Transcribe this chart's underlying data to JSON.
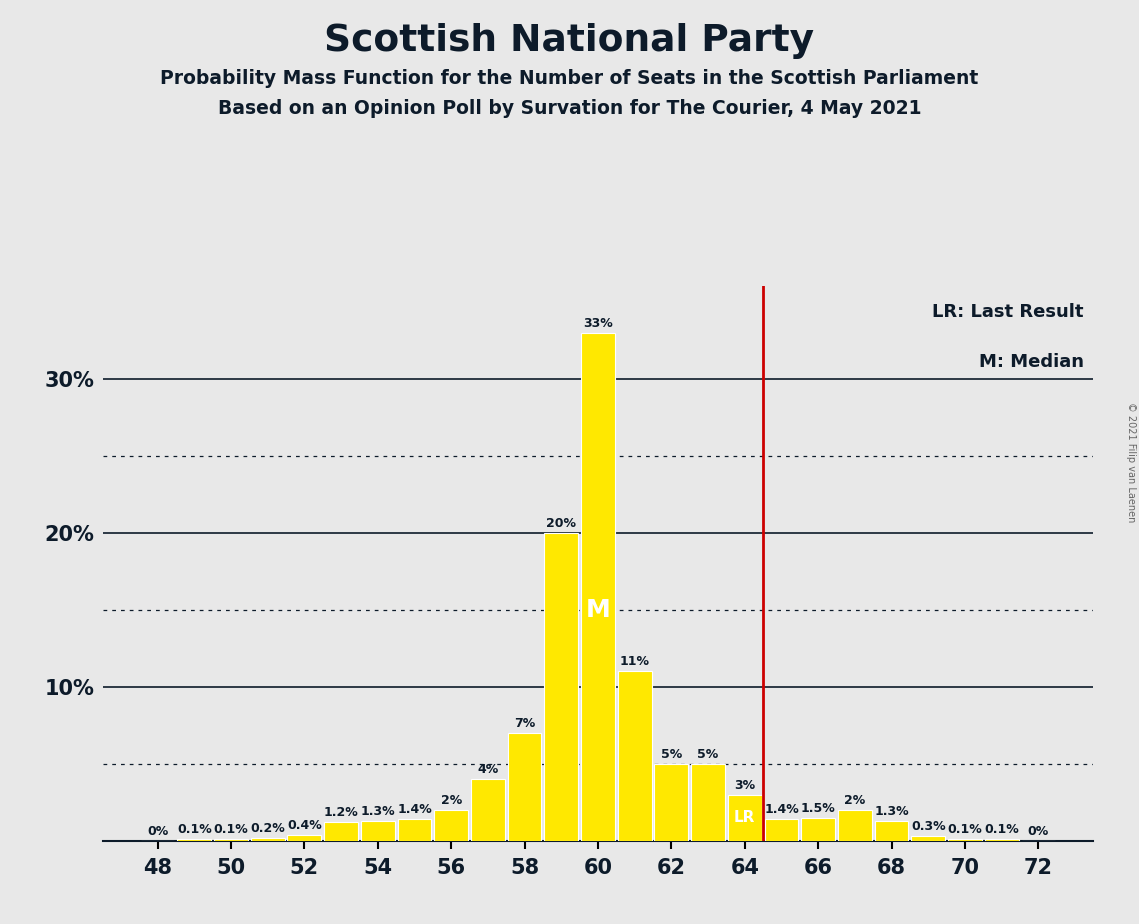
{
  "title": "Scottish National Party",
  "subtitle1": "Probability Mass Function for the Number of Seats in the Scottish Parliament",
  "subtitle2": "Based on an Opinion Poll by Survation for The Courier, 4 May 2021",
  "copyright": "© 2021 Filip van Laenen",
  "seats": [
    48,
    49,
    50,
    51,
    52,
    53,
    54,
    55,
    56,
    57,
    58,
    59,
    60,
    61,
    62,
    63,
    64,
    65,
    66,
    67,
    68,
    69,
    70,
    71,
    72
  ],
  "probabilities": [
    0.0,
    0.1,
    0.1,
    0.2,
    0.4,
    1.2,
    1.3,
    1.4,
    2.0,
    4.0,
    7.0,
    20.0,
    33.0,
    11.0,
    5.0,
    5.0,
    3.0,
    1.4,
    1.5,
    2.0,
    1.3,
    0.3,
    0.1,
    0.1,
    0.0
  ],
  "bar_color": "#FFE800",
  "background_color": "#E8E8E8",
  "median_seat": 60,
  "last_result_seat": 64,
  "median_label": "M",
  "last_result_label": "LR",
  "lr_line_color": "#CC0000",
  "median_label_color": "#FFFFFF",
  "lr_label_color": "#FFFFFF",
  "label_fontsize": 9,
  "solid_yticks": [
    10,
    20,
    30
  ],
  "dotted_yticks": [
    5,
    15,
    25
  ],
  "xlim": [
    46.5,
    73.5
  ],
  "ylim": [
    0,
    36
  ],
  "xticks": [
    48,
    50,
    52,
    54,
    56,
    58,
    60,
    62,
    64,
    66,
    68,
    70,
    72
  ],
  "title_color": "#0d1b2a",
  "subtitle_color": "#0d1b2a"
}
